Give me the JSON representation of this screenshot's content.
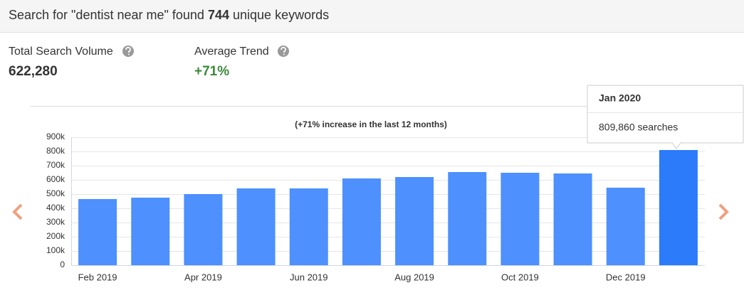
{
  "header": {
    "prefix": "Search for \"dentist near me\" found",
    "count": "744",
    "suffix": "unique keywords"
  },
  "stats": [
    {
      "label": "Total Search Volume",
      "value": "622,280"
    },
    {
      "label": "Average Trend",
      "value": "+71%"
    }
  ],
  "chart_data": {
    "type": "bar",
    "subtitle": "(+71% increase in the last 12 months)",
    "categories": [
      "Feb 2019",
      null,
      "Apr 2019",
      null,
      "Jun 2019",
      null,
      "Aug 2019",
      null,
      "Oct 2019",
      null,
      "Dec 2019",
      null
    ],
    "values": [
      465000,
      475000,
      500000,
      540000,
      540000,
      610000,
      620000,
      655000,
      650000,
      645000,
      545000,
      809860
    ],
    "color": "#4d90fe",
    "highlight_color": "#2b7bfb",
    "highlight_index": 11,
    "ylim": [
      0,
      900000
    ],
    "yticks": [
      0,
      {
        "value": 100000,
        "label": "100k"
      },
      {
        "value": 200000,
        "label": "200k"
      },
      {
        "value": 300000,
        "label": "300k"
      },
      {
        "value": 400000,
        "label": "400k"
      },
      {
        "value": 500000,
        "label": "500k"
      },
      {
        "value": 600000,
        "label": "600k"
      },
      {
        "value": 700000,
        "label": "700k"
      },
      {
        "value": 800000,
        "label": "800k"
      },
      {
        "value": 900000,
        "label": "900k"
      }
    ],
    "grid": true,
    "tooltip": {
      "title": "Jan 2020",
      "text": "809,860 searches"
    }
  }
}
